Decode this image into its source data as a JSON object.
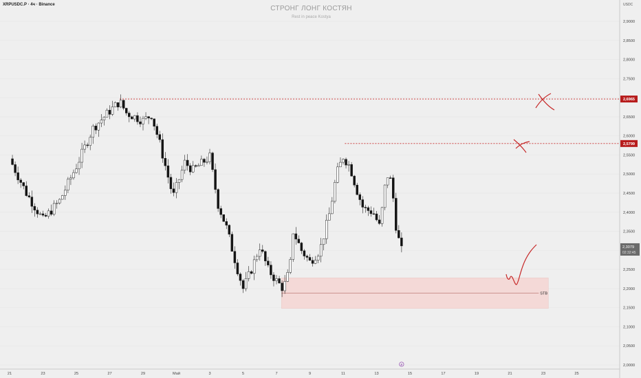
{
  "header": {
    "symbol": "XRPUSDC.P · 4ч · Binance",
    "title": "СТРОНГ ЛОНГ КОСТЯН",
    "subtitle": "Rest in peace Kostya",
    "currency": "USDC"
  },
  "colors": {
    "up": "#ffffff",
    "down": "#131313",
    "wick": "#222222",
    "level_line": "#c62828",
    "zone_fill": "#f4d9d7",
    "background": "#efefef"
  },
  "chart_data": {
    "type": "candlestick",
    "yrange": [
      2.0,
      2.95
    ],
    "y_ticks": [
      "2,9000",
      "2,8500",
      "2,8000",
      "2,7500",
      "2,7000",
      "2,6500",
      "2,6000",
      "2,5500",
      "2,5000",
      "2,4500",
      "2,4000",
      "2,3500",
      "2,3000",
      "2,2500",
      "2,2000",
      "2,1500",
      "2,1000",
      "2,0500",
      "2,0000"
    ],
    "y_tick_values": [
      2.9,
      2.85,
      2.8,
      2.75,
      2.7,
      2.65,
      2.6,
      2.55,
      2.5,
      2.45,
      2.4,
      2.35,
      2.3,
      2.25,
      2.2,
      2.15,
      2.1,
      2.05,
      2.0
    ],
    "x_ticks": [
      {
        "label": "21",
        "day": 0
      },
      {
        "label": "23",
        "day": 2
      },
      {
        "label": "25",
        "day": 4
      },
      {
        "label": "27",
        "day": 6
      },
      {
        "label": "29",
        "day": 8
      },
      {
        "label": "Май",
        "day": 10
      },
      {
        "label": "3",
        "day": 12
      },
      {
        "label": "5",
        "day": 14
      },
      {
        "label": "7",
        "day": 16
      },
      {
        "label": "9",
        "day": 18
      },
      {
        "label": "11",
        "day": 20
      },
      {
        "label": "13",
        "day": 22
      },
      {
        "label": "15",
        "day": 24
      },
      {
        "label": "17",
        "day": 26
      },
      {
        "label": "19",
        "day": 28
      },
      {
        "label": "21",
        "day": 30
      },
      {
        "label": "23",
        "day": 32
      },
      {
        "label": "25",
        "day": 34
      }
    ],
    "price_path": [
      [
        0,
        2.54
      ],
      [
        1,
        2.45
      ],
      [
        2,
        2.38
      ],
      [
        3,
        2.43
      ],
      [
        4,
        2.52
      ],
      [
        5,
        2.62
      ],
      [
        6,
        2.665
      ],
      [
        6.6,
        2.69
      ],
      [
        7,
        2.66
      ],
      [
        8,
        2.64
      ],
      [
        8.5,
        2.655
      ],
      [
        9,
        2.58
      ],
      [
        9.8,
        2.44
      ],
      [
        10.5,
        2.53
      ],
      [
        11,
        2.51
      ],
      [
        12,
        2.545
      ],
      [
        12.5,
        2.42
      ],
      [
        13,
        2.36
      ],
      [
        13.6,
        2.26
      ],
      [
        14,
        2.2
      ],
      [
        14.5,
        2.25
      ],
      [
        15,
        2.31
      ],
      [
        15.5,
        2.25
      ],
      [
        16,
        2.22
      ],
      [
        16.4,
        2.2
      ],
      [
        16.8,
        2.25
      ],
      [
        17,
        2.35
      ],
      [
        17.5,
        2.3
      ],
      [
        18,
        2.27
      ],
      [
        18.6,
        2.3
      ],
      [
        19.2,
        2.4
      ],
      [
        19.6,
        2.5
      ],
      [
        20,
        2.545
      ],
      [
        20.4,
        2.52
      ],
      [
        20.8,
        2.46
      ],
      [
        21.2,
        2.41
      ],
      [
        21.8,
        2.4
      ],
      [
        22.2,
        2.36
      ],
      [
        22.6,
        2.5
      ],
      [
        22.9,
        2.48
      ],
      [
        23.2,
        2.35
      ],
      [
        23.5,
        2.3
      ]
    ],
    "levels": [
      {
        "label": "2,6965",
        "value": 2.6965,
        "start_day": 6.6
      },
      {
        "label": "2,5799",
        "value": 2.5799,
        "start_day": 20.1
      }
    ],
    "last_price": {
      "label": "2,3079",
      "value": 2.3079,
      "timer": "02:32:45"
    },
    "zone": {
      "label": "STB",
      "top": 2.228,
      "bottom": 2.148,
      "mid": 2.188,
      "start_day": 16.3,
      "end_day": 32.3
    },
    "event_marker": {
      "day": 23.5,
      "symbol": "₽"
    }
  }
}
